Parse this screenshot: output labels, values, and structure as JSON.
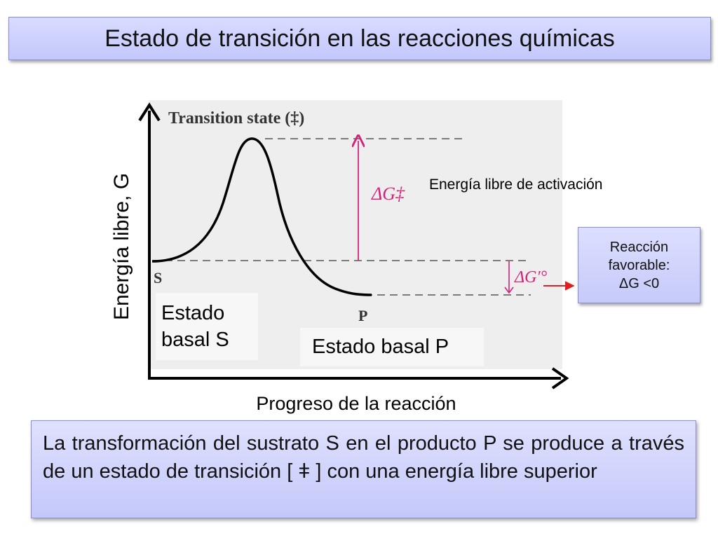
{
  "slide": {
    "title": "Estado de transición en las reacciones químicas"
  },
  "diagram": {
    "figure_labels": {
      "transition_state": "Transition state (‡)",
      "delta_g_activation": "ΔG‡",
      "delta_g_standard": "ΔG′°",
      "s_marker": "S",
      "p_marker": "P"
    },
    "axes": {
      "y_label": "Energía libre, G",
      "x_label": "Progreso de la reacción"
    },
    "annotations": {
      "activation_energy": "Energía libre de activación",
      "favorable_line1": "Reacción",
      "favorable_line2": "favorable:",
      "favorable_line3": "ΔG <0",
      "basal_s_line1": "Estado",
      "basal_s_line2": "basal S",
      "basal_p": "Estado basal P"
    },
    "colors": {
      "activation_arrow": "#d4227a",
      "favorable_arrow": "#e02020",
      "panel_background": "#eeeeee"
    }
  },
  "description": "La transformación del sustrato S en el producto P se produce a través de un estado de transición [ ǂ ] con una energía libre superior"
}
